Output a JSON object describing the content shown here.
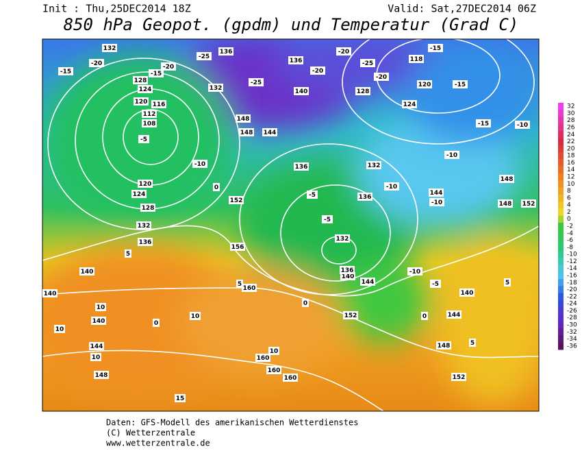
{
  "header": {
    "init": "Init : Thu,25DEC2014 18Z",
    "valid": "Valid: Sat,27DEC2014 06Z",
    "title": "850 hPa Geopot. (gpdm) und Temperatur (Grad C)"
  },
  "colorbar": {
    "ticks": [
      32,
      30,
      28,
      26,
      24,
      22,
      20,
      18,
      16,
      14,
      12,
      10,
      8,
      6,
      4,
      2,
      0,
      -2,
      -4,
      -6,
      -8,
      -10,
      -12,
      -14,
      -16,
      -18,
      -20,
      -22,
      -24,
      -26,
      -28,
      -30,
      -32,
      -34,
      -36
    ]
  },
  "geopotential_labels": [
    132,
    136,
    136,
    132,
    128,
    124,
    120,
    116,
    112,
    108,
    140,
    128,
    124,
    120,
    118,
    148,
    148,
    144,
    136,
    132,
    136,
    152,
    120,
    124,
    128,
    132,
    136,
    140,
    140,
    140,
    144,
    148,
    156,
    160,
    152,
    160,
    160,
    160,
    144,
    140,
    136,
    132,
    144,
    148,
    148,
    152,
    140,
    144,
    148,
    152
  ],
  "temperature_labels": [
    -15,
    -15,
    -20,
    -20,
    -15,
    -25,
    -20,
    -25,
    -20,
    -20,
    -25,
    -15,
    5,
    10,
    10,
    10,
    10,
    0,
    5,
    10,
    15,
    0,
    0,
    -5,
    -10,
    -5,
    -5,
    -10,
    -5,
    5,
    5,
    0,
    -10,
    -10,
    -15,
    -10,
    -10
  ],
  "footer": {
    "source": "Daten: GFS-Modell des amerikanischen Wetterdienstes",
    "copyright": "(C) Wetterzentrale",
    "url": "www.wetterzentrale.de"
  }
}
